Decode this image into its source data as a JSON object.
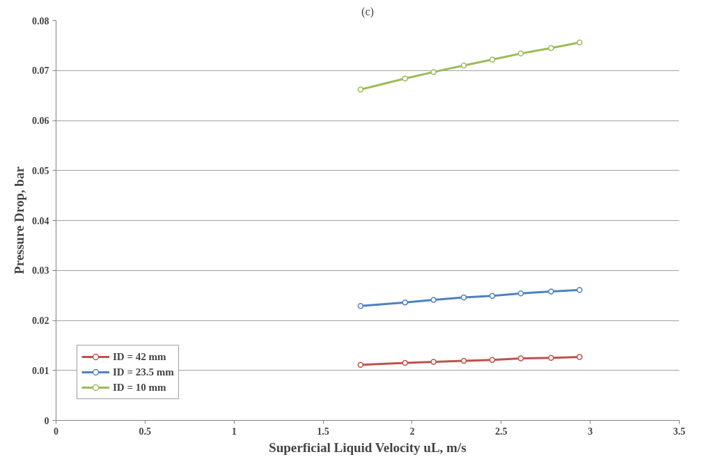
{
  "chart_data": {
    "type": "line",
    "title": "(c)",
    "xlabel": "Superficial Liquid Velocity uL, m/s",
    "ylabel": "Pressure Drop, bar",
    "x": [
      1.71,
      1.96,
      2.12,
      2.29,
      2.45,
      2.61,
      2.78,
      2.94
    ],
    "series": [
      {
        "name": "ID = 42 mm",
        "color": "#c0504d",
        "values": [
          0.0111,
          0.0115,
          0.0117,
          0.0119,
          0.0121,
          0.0124,
          0.0125,
          0.0127
        ]
      },
      {
        "name": "ID = 23.5 mm",
        "color": "#4f81bd",
        "values": [
          0.0229,
          0.0236,
          0.0241,
          0.0246,
          0.0249,
          0.0254,
          0.0258,
          0.0261
        ]
      },
      {
        "name": "ID = 10 mm",
        "color": "#9bbb59",
        "values": [
          0.0662,
          0.0684,
          0.0697,
          0.071,
          0.0722,
          0.0734,
          0.0745,
          0.0756
        ]
      }
    ],
    "xlim": [
      0,
      3.5
    ],
    "xticks": [
      0,
      0.5,
      1,
      1.5,
      2,
      2.5,
      3,
      3.5
    ],
    "ylim": [
      0,
      0.08
    ],
    "yticks": [
      0,
      0.01,
      0.02,
      0.03,
      0.04,
      0.05,
      0.06,
      0.07,
      0.08
    ],
    "grid": "y",
    "legend": "bottom left",
    "marker": "circle",
    "line_style": "solid"
  }
}
